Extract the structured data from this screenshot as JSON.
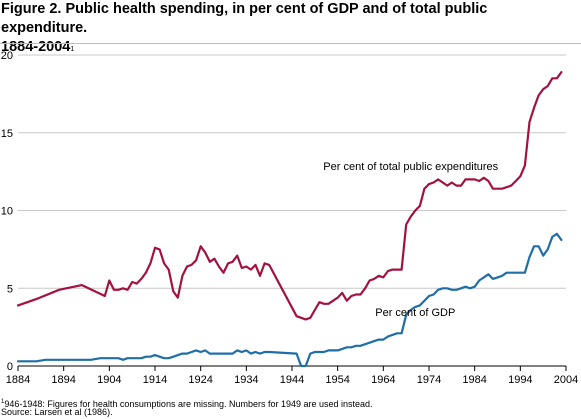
{
  "figure": {
    "title_line1": "Figure 2. Public health spending, in per cent of GDP and of total public expenditure.",
    "title_line2": "1884-2004",
    "title_sup": "1",
    "footnote_sup": "1",
    "footnote": "1946-1948: Figures for health consumptions are missing. Numbers for 1949 are used instead.",
    "source": "Source: Larsen et al (1986)."
  },
  "chart_data": {
    "type": "line",
    "title": "Figure 2. Public health spending, in per cent of GDP and of total public expenditure. 1884-2004",
    "xlabel": "",
    "ylabel": "",
    "xlim": [
      1884,
      2004
    ],
    "ylim": [
      0,
      20
    ],
    "x_ticks": [
      1884,
      1894,
      1904,
      1914,
      1924,
      1934,
      1944,
      1954,
      1964,
      1974,
      1984,
      1994,
      2004
    ],
    "y_ticks": [
      0,
      5,
      10,
      15,
      20
    ],
    "grid": "horizontal",
    "legend": "none",
    "series": [
      {
        "name": "Per cent of total public expenditures",
        "color": "#a3123f",
        "points": [
          [
            1884,
            3.9
          ],
          [
            1888,
            4.3
          ],
          [
            1893,
            4.9
          ],
          [
            1898,
            5.2
          ],
          [
            1903,
            4.5
          ],
          [
            1904,
            5.5
          ],
          [
            1905,
            4.9
          ],
          [
            1906,
            4.9
          ],
          [
            1907,
            5.0
          ],
          [
            1908,
            4.9
          ],
          [
            1909,
            5.4
          ],
          [
            1910,
            5.3
          ],
          [
            1911,
            5.6
          ],
          [
            1912,
            6.0
          ],
          [
            1913,
            6.6
          ],
          [
            1914,
            7.6
          ],
          [
            1915,
            7.5
          ],
          [
            1916,
            6.6
          ],
          [
            1917,
            6.2
          ],
          [
            1918,
            4.8
          ],
          [
            1919,
            4.4
          ],
          [
            1920,
            5.8
          ],
          [
            1921,
            6.4
          ],
          [
            1922,
            6.5
          ],
          [
            1923,
            6.8
          ],
          [
            1924,
            7.7
          ],
          [
            1925,
            7.3
          ],
          [
            1926,
            6.7
          ],
          [
            1927,
            6.9
          ],
          [
            1928,
            6.4
          ],
          [
            1929,
            6.0
          ],
          [
            1930,
            6.6
          ],
          [
            1931,
            6.7
          ],
          [
            1932,
            7.1
          ],
          [
            1933,
            6.3
          ],
          [
            1934,
            6.4
          ],
          [
            1935,
            6.2
          ],
          [
            1936,
            6.5
          ],
          [
            1937,
            5.8
          ],
          [
            1938,
            6.6
          ],
          [
            1939,
            6.5
          ],
          [
            1945,
            3.2
          ],
          [
            1947,
            3.0
          ],
          [
            1948,
            3.1
          ],
          [
            1949,
            3.6
          ],
          [
            1950,
            4.1
          ],
          [
            1951,
            4.0
          ],
          [
            1952,
            4.0
          ],
          [
            1953,
            4.2
          ],
          [
            1954,
            4.4
          ],
          [
            1955,
            4.7
          ],
          [
            1956,
            4.2
          ],
          [
            1957,
            4.5
          ],
          [
            1958,
            4.6
          ],
          [
            1959,
            4.6
          ],
          [
            1960,
            5.0
          ],
          [
            1961,
            5.5
          ],
          [
            1962,
            5.6
          ],
          [
            1963,
            5.8
          ],
          [
            1964,
            5.7
          ],
          [
            1965,
            6.1
          ],
          [
            1966,
            6.2
          ],
          [
            1967,
            6.2
          ],
          [
            1968,
            6.2
          ],
          [
            1969,
            9.1
          ],
          [
            1970,
            9.6
          ],
          [
            1971,
            10.0
          ],
          [
            1972,
            10.3
          ],
          [
            1973,
            11.4
          ],
          [
            1974,
            11.7
          ],
          [
            1975,
            11.8
          ],
          [
            1976,
            12.0
          ],
          [
            1977,
            11.8
          ],
          [
            1978,
            11.6
          ],
          [
            1979,
            11.8
          ],
          [
            1980,
            11.6
          ],
          [
            1981,
            11.6
          ],
          [
            1982,
            12.0
          ],
          [
            1983,
            12.0
          ],
          [
            1984,
            12.0
          ],
          [
            1985,
            11.9
          ],
          [
            1986,
            12.1
          ],
          [
            1987,
            11.9
          ],
          [
            1988,
            11.4
          ],
          [
            1989,
            11.4
          ],
          [
            1990,
            11.4
          ],
          [
            1991,
            11.5
          ],
          [
            1992,
            11.6
          ],
          [
            1993,
            11.9
          ],
          [
            1994,
            12.2
          ],
          [
            1995,
            12.9
          ],
          [
            1996,
            15.7
          ],
          [
            1997,
            16.6
          ],
          [
            1998,
            17.4
          ],
          [
            1999,
            17.8
          ],
          [
            2000,
            18.0
          ],
          [
            2001,
            18.5
          ],
          [
            2002,
            18.5
          ],
          [
            2003,
            18.9
          ]
        ]
      },
      {
        "name": "Per cent of GDP",
        "color": "#1f6ea8",
        "points": [
          [
            1884,
            0.3
          ],
          [
            1888,
            0.3
          ],
          [
            1890,
            0.4
          ],
          [
            1894,
            0.4
          ],
          [
            1900,
            0.4
          ],
          [
            1902,
            0.5
          ],
          [
            1906,
            0.5
          ],
          [
            1907,
            0.4
          ],
          [
            1908,
            0.5
          ],
          [
            1911,
            0.5
          ],
          [
            1912,
            0.6
          ],
          [
            1913,
            0.6
          ],
          [
            1914,
            0.7
          ],
          [
            1915,
            0.6
          ],
          [
            1916,
            0.5
          ],
          [
            1917,
            0.5
          ],
          [
            1918,
            0.6
          ],
          [
            1920,
            0.8
          ],
          [
            1921,
            0.8
          ],
          [
            1922,
            0.9
          ],
          [
            1923,
            1.0
          ],
          [
            1924,
            0.9
          ],
          [
            1925,
            1.0
          ],
          [
            1926,
            0.8
          ],
          [
            1927,
            0.8
          ],
          [
            1928,
            0.8
          ],
          [
            1929,
            0.8
          ],
          [
            1930,
            0.8
          ],
          [
            1931,
            0.8
          ],
          [
            1932,
            1.0
          ],
          [
            1933,
            0.9
          ],
          [
            1934,
            1.0
          ],
          [
            1935,
            0.8
          ],
          [
            1936,
            0.9
          ],
          [
            1937,
            0.8
          ],
          [
            1938,
            0.9
          ],
          [
            1939,
            0.9
          ],
          [
            1945,
            0.8
          ],
          [
            1946,
            0.0
          ],
          [
            1947,
            0.0
          ],
          [
            1948,
            0.8
          ],
          [
            1949,
            0.9
          ],
          [
            1950,
            0.9
          ],
          [
            1951,
            0.9
          ],
          [
            1952,
            1.0
          ],
          [
            1953,
            1.0
          ],
          [
            1954,
            1.0
          ],
          [
            1955,
            1.1
          ],
          [
            1956,
            1.2
          ],
          [
            1957,
            1.2
          ],
          [
            1958,
            1.3
          ],
          [
            1959,
            1.3
          ],
          [
            1960,
            1.4
          ],
          [
            1961,
            1.5
          ],
          [
            1962,
            1.6
          ],
          [
            1963,
            1.7
          ],
          [
            1964,
            1.7
          ],
          [
            1965,
            1.9
          ],
          [
            1966,
            2.0
          ],
          [
            1967,
            2.1
          ],
          [
            1968,
            2.1
          ],
          [
            1969,
            3.3
          ],
          [
            1970,
            3.6
          ],
          [
            1971,
            3.8
          ],
          [
            1972,
            3.9
          ],
          [
            1973,
            4.2
          ],
          [
            1974,
            4.5
          ],
          [
            1975,
            4.6
          ],
          [
            1976,
            4.9
          ],
          [
            1977,
            5.0
          ],
          [
            1978,
            5.0
          ],
          [
            1979,
            4.9
          ],
          [
            1980,
            4.9
          ],
          [
            1981,
            5.0
          ],
          [
            1982,
            5.1
          ],
          [
            1983,
            5.0
          ],
          [
            1984,
            5.1
          ],
          [
            1985,
            5.5
          ],
          [
            1986,
            5.7
          ],
          [
            1987,
            5.9
          ],
          [
            1988,
            5.6
          ],
          [
            1989,
            5.7
          ],
          [
            1990,
            5.8
          ],
          [
            1991,
            6.0
          ],
          [
            1992,
            6.0
          ],
          [
            1993,
            6.0
          ],
          [
            1994,
            6.0
          ],
          [
            1995,
            6.0
          ],
          [
            1996,
            7.0
          ],
          [
            1997,
            7.7
          ],
          [
            1998,
            7.7
          ],
          [
            1999,
            7.1
          ],
          [
            2000,
            7.5
          ],
          [
            2001,
            8.3
          ],
          [
            2002,
            8.5
          ],
          [
            2003,
            8.1
          ]
        ]
      }
    ],
    "annotations": [
      {
        "text": "Per cent of total public expenditures",
        "x": 1970,
        "y": 12.6
      },
      {
        "text": "Per cent of GDP",
        "x": 1971,
        "y": 3.2
      }
    ]
  }
}
